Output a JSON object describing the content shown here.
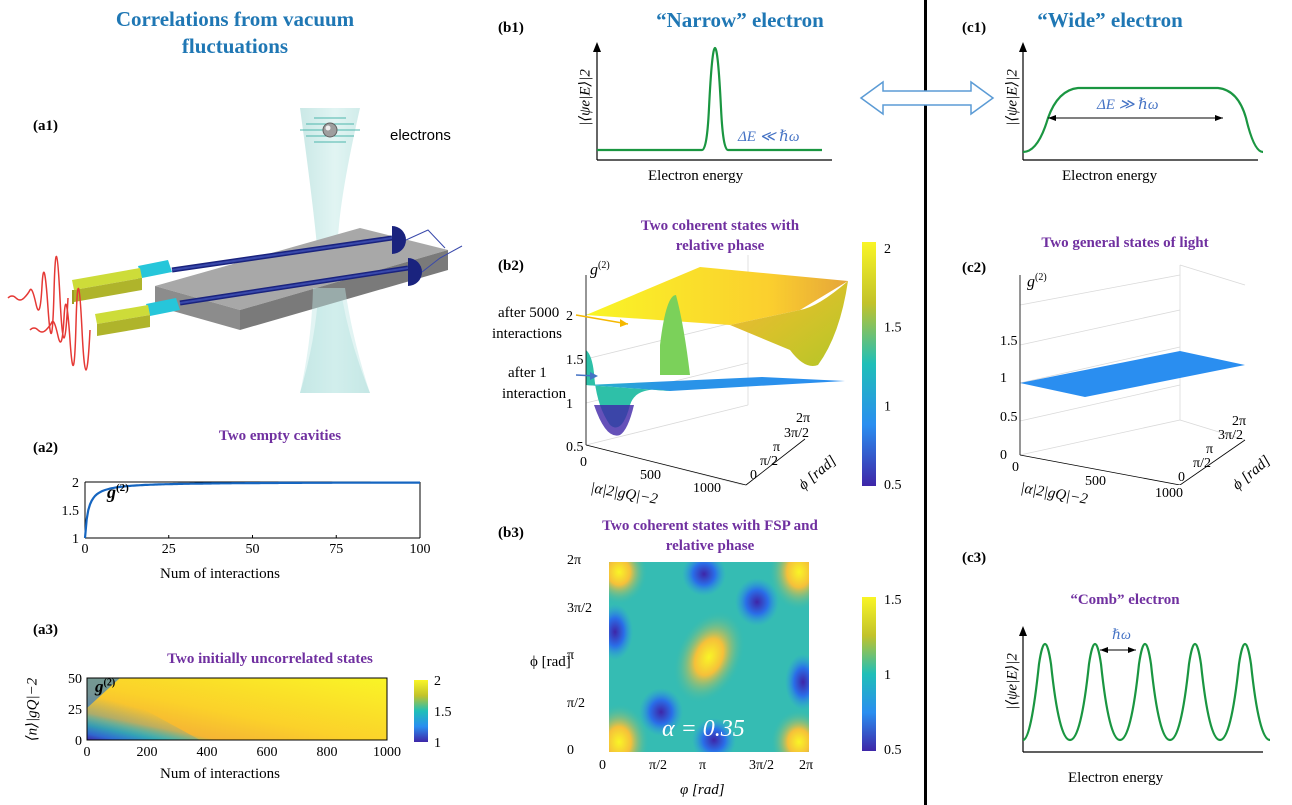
{
  "headers": {
    "a_title": "Correlations from vacuum fluctuations",
    "b_title": "“Narrow” electron",
    "c_title": "“Wide” electron"
  },
  "panels": {
    "a1": "(a1)",
    "a2": "(a2)",
    "a3": "(a3)",
    "b1": "(b1)",
    "b2": "(b2)",
    "b3": "(b3)",
    "c1": "(c1)",
    "c2": "(c2)",
    "c3": "(c3)"
  },
  "a1": {
    "label": "electrons"
  },
  "a2": {
    "title": "Two empty cavities",
    "series_label": "g(2)",
    "xlabel": "Num of interactions",
    "xticks": [
      "0",
      "25",
      "50",
      "75",
      "100"
    ],
    "yticks": [
      "1",
      "1.5",
      "2"
    ]
  },
  "a3": {
    "title": "Two initially uncorrelated states",
    "series_label": "g(2)",
    "xlabel": "Num of interactions",
    "ylabel": "⟨n⟩|gQ|−2",
    "xticks": [
      "0",
      "200",
      "400",
      "600",
      "800",
      "1000"
    ],
    "yticks": [
      "0",
      "25",
      "50"
    ],
    "cbar_ticks": [
      "1",
      "1.5",
      "2"
    ]
  },
  "b1": {
    "ylabel": "|⟨ψe|E⟩|2",
    "xlabel": "Electron energy",
    "note": "ΔE ≪ ℏω"
  },
  "b2": {
    "title_line1": "Two coherent states with",
    "title_line2": "relative phase",
    "zlabel": "g(2)",
    "annot_5000_line1": "after 5000",
    "annot_5000_line2": "interactions",
    "annot_1_line1": "after 1",
    "annot_1_line2": "interaction",
    "zticks": [
      "0.5",
      "1",
      "1.5",
      "2"
    ],
    "xticks": [
      "0",
      "500",
      "1000"
    ],
    "xlabel": "|α|2|gQ|−2",
    "phiticks": [
      "0",
      "π/2",
      "π",
      "3π/2",
      "2π"
    ],
    "philabel": "ϕ [rad]",
    "cbar_ticks": [
      "0.5",
      "1",
      "1.5",
      "2"
    ]
  },
  "b3": {
    "title_line1": "Two coherent states with FSP and",
    "title_line2": "relative phase",
    "ylabel": "ϕ [rad]",
    "xlabel": "φ [rad]",
    "ticks": [
      "0",
      "π/2",
      "π",
      "3π/2",
      "2π"
    ],
    "alpha": "α = 0.35",
    "cbar_ticks": [
      "0.5",
      "1",
      "1.5"
    ]
  },
  "c1": {
    "ylabel": "|⟨ψe|E⟩|2",
    "xlabel": "Electron energy",
    "note": "ΔE ≫ ℏω"
  },
  "c2": {
    "title": "Two general states of light",
    "zlabel": "g(2)",
    "zticks": [
      "0",
      "0.5",
      "1",
      "1.5"
    ],
    "xticks": [
      "0",
      "500",
      "1000"
    ],
    "xlabel": "|α|2|gQ|−2",
    "phiticks": [
      "0",
      "π/2",
      "π",
      "3π/2",
      "2π"
    ],
    "philabel": "ϕ [rad]"
  },
  "c3": {
    "title": "“Comb” electron",
    "ylabel": "|⟨ψe|E⟩|2",
    "xlabel": "Electron energy",
    "note": "ℏω"
  },
  "colors": {
    "accent_blue": "#1f77b4",
    "purple": "#7030a0",
    "green": "#1a9641",
    "curve_blue": "#1565c0"
  }
}
